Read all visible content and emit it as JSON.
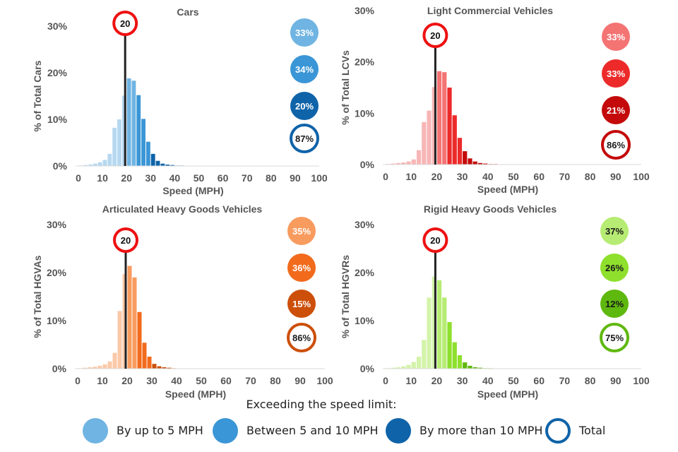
{
  "legend": {
    "title": "Exceeding the speed limit:",
    "items": [
      {
        "label": "By up to 5 MPH",
        "color": "#6fb4e2",
        "style": "filled"
      },
      {
        "label": "Between 5 and 10 MPH",
        "color": "#3a96d6",
        "style": "filled"
      },
      {
        "label": "By more than 10 MPH",
        "color": "#0f63a8",
        "style": "filled"
      },
      {
        "label": "Total",
        "color": "#0f63a8",
        "style": "ring"
      }
    ]
  },
  "chart_data": [
    {
      "type": "bar",
      "title": "Cars",
      "xlabel": "Speed (MPH)",
      "ylabel": "% of Total Cars",
      "xticks": [
        "0",
        "10",
        "20",
        "30",
        "40",
        "50",
        "60",
        "70",
        "80",
        "90",
        "100"
      ],
      "yticks": [
        "0%",
        "10%",
        "20%",
        "30%"
      ],
      "xlim": [
        0,
        100
      ],
      "ylim": [
        0,
        30
      ],
      "speed_limit": "20",
      "bin_width": 2,
      "x": [
        2,
        4,
        6,
        8,
        10,
        12,
        14,
        16,
        18,
        20,
        22,
        24,
        26,
        28,
        30,
        32,
        34,
        36,
        38,
        40,
        42,
        44,
        46
      ],
      "values": [
        0.1,
        0.2,
        0.3,
        0.5,
        0.8,
        1.3,
        2.6,
        8.2,
        10.0,
        15.1,
        18.8,
        18.3,
        15.2,
        10.1,
        5.2,
        2.6,
        1.1,
        0.5,
        0.3,
        0.2,
        0.1,
        0.1,
        0.05
      ],
      "colors": {
        "under": "#b5d8f0",
        "up_to_5": "#6fb4e2",
        "5_to_10": "#3a96d6",
        "over_10": "#0f63a8"
      },
      "badges": [
        "33%",
        "34%",
        "20%",
        "87%"
      ]
    },
    {
      "type": "bar",
      "title": "Light Commercial Vehicles",
      "xlabel": "Speed (MPH)",
      "ylabel": "% of Total LCVs",
      "xticks": [
        "0",
        "10",
        "20",
        "30",
        "40",
        "50",
        "60",
        "70",
        "80",
        "90",
        "100"
      ],
      "yticks": [
        "0%",
        "10%",
        "20%",
        "30%"
      ],
      "xlim": [
        0,
        100
      ],
      "ylim": [
        0,
        30
      ],
      "speed_limit": "20",
      "bin_width": 2,
      "x": [
        2,
        4,
        6,
        8,
        10,
        12,
        14,
        16,
        18,
        20,
        22,
        24,
        26,
        28,
        30,
        32,
        34,
        36,
        38,
        40,
        42,
        44,
        46
      ],
      "values": [
        0.1,
        0.2,
        0.3,
        0.4,
        0.6,
        1.0,
        2.8,
        8.3,
        10.5,
        15.1,
        18.2,
        18.0,
        15.0,
        9.6,
        5.2,
        2.6,
        1.2,
        0.6,
        0.3,
        0.2,
        0.1,
        0.1,
        0.05
      ],
      "colors": {
        "under": "#f7b6b6",
        "up_to_5": "#f47373",
        "5_to_10": "#ec2a2a",
        "over_10": "#c40a0a"
      },
      "badges": [
        "33%",
        "33%",
        "21%",
        "86%"
      ]
    },
    {
      "type": "bar",
      "title": "Articulated Heavy Goods Vehicles",
      "xlabel": "Speed (MPH)",
      "ylabel": "% of Total HGVAs",
      "xticks": [
        "0",
        "10",
        "20",
        "30",
        "40",
        "50",
        "60",
        "70",
        "80",
        "90",
        "100"
      ],
      "yticks": [
        "0%",
        "10%",
        "20%",
        "30%"
      ],
      "xlim": [
        0,
        100
      ],
      "ylim": [
        0,
        30
      ],
      "speed_limit": "20",
      "bin_width": 2,
      "x": [
        2,
        4,
        6,
        8,
        10,
        12,
        14,
        16,
        18,
        20,
        22,
        24,
        26,
        28,
        30,
        32,
        34,
        36,
        38,
        40,
        42
      ],
      "values": [
        0.1,
        0.2,
        0.3,
        0.4,
        0.6,
        0.9,
        1.5,
        3.3,
        12.0,
        19.7,
        21.4,
        19.0,
        11.8,
        5.4,
        2.5,
        1.0,
        0.5,
        0.3,
        0.2,
        0.1,
        0.05
      ],
      "colors": {
        "under": "#fbc9a8",
        "up_to_5": "#f89b5e",
        "5_to_10": "#f26a1c",
        "over_10": "#cc4f0a"
      },
      "badges": [
        "35%",
        "36%",
        "15%",
        "86%"
      ]
    },
    {
      "type": "bar",
      "title": "Rigid Heavy Goods Vehicles",
      "xlabel": "Speed (MPH)",
      "ylabel": "% of Total HGVRs",
      "xticks": [
        "0",
        "10",
        "20",
        "30",
        "40",
        "50",
        "60",
        "70",
        "80",
        "90",
        "100"
      ],
      "yticks": [
        "0%",
        "10%",
        "20%",
        "30%"
      ],
      "xlim": [
        0,
        100
      ],
      "ylim": [
        0,
        30
      ],
      "speed_limit": "20",
      "bin_width": 2,
      "x": [
        2,
        4,
        6,
        8,
        10,
        12,
        14,
        16,
        18,
        20,
        22,
        24,
        26,
        28,
        30,
        32,
        34,
        36,
        38,
        40,
        42,
        44,
        46
      ],
      "values": [
        0.1,
        0.2,
        0.3,
        0.5,
        0.8,
        1.4,
        2.5,
        6.0,
        14.8,
        19.2,
        18.4,
        14.8,
        9.7,
        5.5,
        2.8,
        1.3,
        0.6,
        0.3,
        0.2,
        0.1,
        0.1,
        0.05,
        0.05
      ],
      "colors": {
        "under": "#d3f3a9",
        "up_to_5": "#b6ec73",
        "5_to_10": "#8ee02d",
        "over_10": "#5fb80e"
      },
      "badges": [
        "37%",
        "26%",
        "12%",
        "75%"
      ]
    }
  ]
}
